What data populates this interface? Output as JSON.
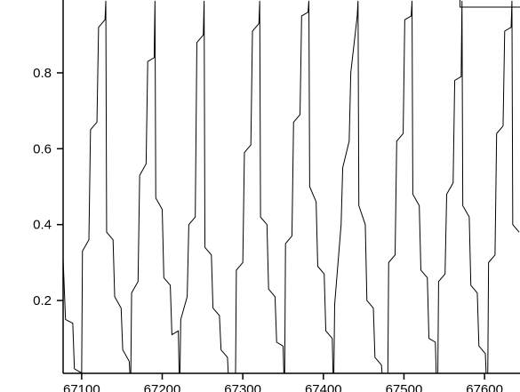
{
  "chart_data": {
    "type": "line",
    "color": "#000000",
    "xlim": [
      67077,
      67644
    ],
    "ylim": [
      0.008,
      0.992
    ],
    "xticks": [
      67100,
      67200,
      67300,
      67400,
      67500,
      67600
    ],
    "yticks": [
      0.2,
      0.4,
      0.6,
      0.8
    ],
    "x": [
      67077,
      67080,
      67089,
      67091,
      67099,
      67100,
      67101,
      67109,
      67111,
      67119,
      67121,
      67129,
      67130,
      67131,
      67139,
      67141,
      67149,
      67151,
      67159,
      67160,
      67161,
      67162,
      67170,
      67172,
      67180,
      67182,
      67190,
      67191,
      67192,
      67200,
      67202,
      67210,
      67212,
      67220,
      67221,
      67222,
      67223,
      67231,
      67233,
      67241,
      67243,
      67251,
      67252,
      67253,
      67261,
      67263,
      67271,
      67273,
      67281,
      67282,
      67291,
      67292,
      67300,
      67302,
      67310,
      67312,
      67320,
      67321,
      67322,
      67330,
      67332,
      67340,
      67342,
      67350,
      67351,
      67352,
      67353,
      67361,
      67363,
      67371,
      67373,
      67381,
      67382,
      67383,
      67391,
      67393,
      67401,
      67403,
      67411,
      67412,
      67413,
      67414,
      67422,
      67424,
      67432,
      67434,
      67442,
      67443,
      67444,
      67452,
      67454,
      67462,
      67464,
      67472,
      67473,
      67480,
      67481,
      67489,
      67491,
      67499,
      67501,
      67509,
      67510,
      67511,
      67519,
      67521,
      67529,
      67531,
      67539,
      67540,
      67542,
      67543,
      67551,
      67553,
      67561,
      67563,
      67571,
      67572,
      67573,
      67581,
      67583,
      67591,
      67593,
      67601,
      67602,
      67604,
      67605,
      67613,
      67615,
      67623,
      67625,
      67633,
      67634,
      67635,
      67643
    ],
    "values": [
      0.31,
      0.15,
      0.14,
      0.02,
      0.01,
      0.005,
      0.33,
      0.36,
      0.65,
      0.67,
      0.92,
      0.94,
      0.99,
      0.38,
      0.36,
      0.21,
      0.18,
      0.07,
      0.04,
      0.005,
      0.005,
      0.22,
      0.25,
      0.53,
      0.56,
      0.83,
      0.84,
      0.99,
      0.47,
      0.44,
      0.26,
      0.24,
      0.11,
      0.12,
      0.005,
      0.005,
      0.15,
      0.21,
      0.4,
      0.42,
      0.88,
      0.9,
      0.99,
      0.34,
      0.32,
      0.18,
      0.16,
      0.07,
      0.05,
      0.005,
      0.005,
      0.28,
      0.3,
      0.59,
      0.61,
      0.91,
      0.93,
      0.99,
      0.42,
      0.4,
      0.23,
      0.21,
      0.09,
      0.08,
      0.005,
      0.005,
      0.35,
      0.37,
      0.67,
      0.69,
      0.95,
      0.96,
      0.99,
      0.5,
      0.46,
      0.29,
      0.27,
      0.12,
      0.1,
      0.005,
      0.005,
      0.19,
      0.4,
      0.55,
      0.62,
      0.8,
      0.95,
      0.99,
      0.45,
      0.4,
      0.2,
      0.18,
      0.05,
      0.03,
      0.005,
      0.005,
      0.3,
      0.32,
      0.62,
      0.64,
      0.94,
      0.95,
      0.99,
      0.48,
      0.45,
      0.28,
      0.26,
      0.1,
      0.09,
      0.005,
      0.005,
      0.25,
      0.27,
      0.48,
      0.51,
      0.78,
      0.79,
      0.99,
      0.45,
      0.42,
      0.24,
      0.22,
      0.08,
      0.06,
      0.005,
      0.005,
      0.3,
      0.32,
      0.64,
      0.66,
      0.91,
      0.92,
      0.99,
      0.4,
      0.38
    ]
  }
}
